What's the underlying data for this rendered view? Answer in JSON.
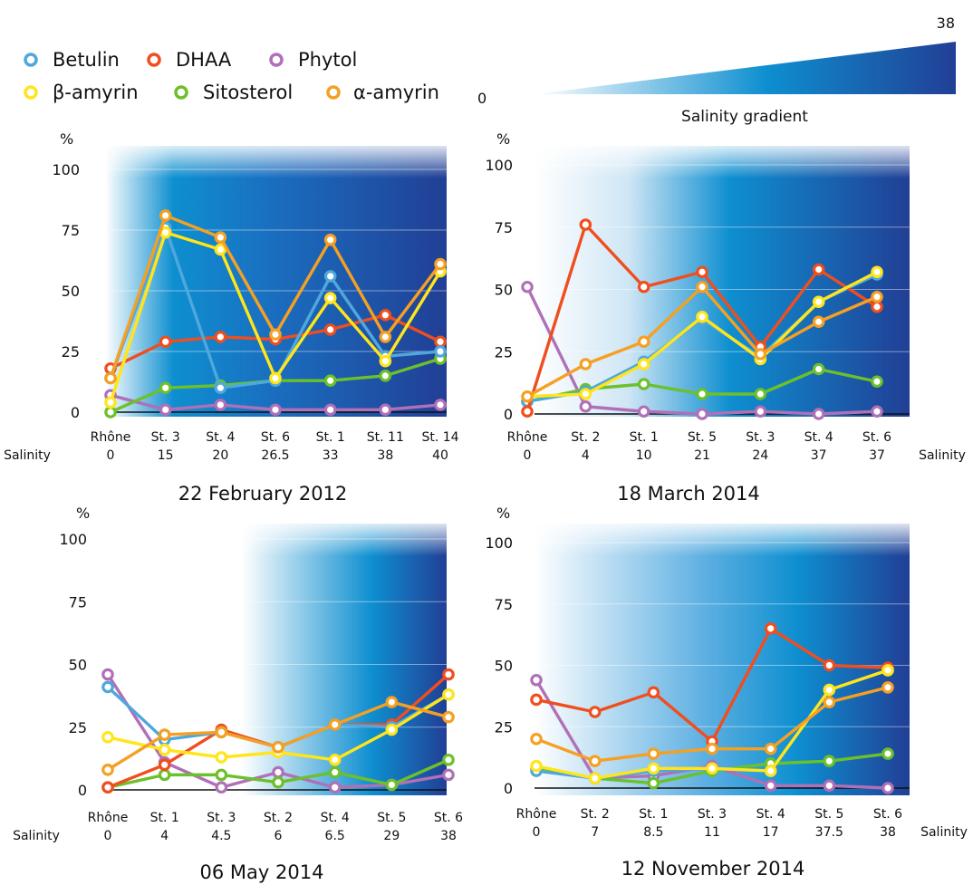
{
  "legend": [
    {
      "name": "Betulin",
      "color": "#4fa8dc"
    },
    {
      "name": "DHAA",
      "color": "#f04e1e"
    },
    {
      "name": "Phytol",
      "color": "#b070b8"
    },
    {
      "name": "β-amyrin",
      "color": "#ffe51a"
    },
    {
      "name": "Sitosterol",
      "color": "#6cc02a"
    },
    {
      "name": "α-amyrin",
      "color": "#f5a023"
    }
  ],
  "gradient_legend": {
    "min_label": "0",
    "max_label": "38",
    "label": "Salinity gradient"
  },
  "background_colors": {
    "light": "#ffffff",
    "mid": "#0e8fd0",
    "dark": "#213f95"
  },
  "chart_data": [
    {
      "type": "line",
      "title": "22 February 2012",
      "ylabel": "%",
      "xlabel": "Salinity",
      "ylim": [
        0,
        100
      ],
      "yticks": [
        "0",
        "25",
        "50",
        "75",
        "100"
      ],
      "categories": [
        "Rhône",
        "St. 3",
        "St. 4",
        "St. 6",
        "St. 1",
        "St. 11",
        "St. 14"
      ],
      "salinity": [
        "0",
        "15",
        "20",
        "26.5",
        "33",
        "38",
        "40"
      ],
      "series": [
        {
          "name": "Phytol",
          "values": [
            7,
            1,
            3,
            1,
            1,
            1,
            3
          ]
        },
        {
          "name": "Sitosterol",
          "values": [
            0,
            10,
            11,
            13,
            13,
            15,
            22
          ]
        },
        {
          "name": "DHAA",
          "values": [
            18,
            29,
            31,
            30,
            34,
            40,
            29
          ]
        },
        {
          "name": "Betulin",
          "values": [
            14,
            76,
            10,
            13,
            56,
            23,
            25
          ]
        },
        {
          "name": "β-amyrin",
          "values": [
            4,
            74,
            67,
            14,
            47,
            21,
            58
          ]
        },
        {
          "name": "α-amyrin",
          "values": [
            14,
            81,
            72,
            32,
            71,
            31,
            61
          ]
        }
      ]
    },
    {
      "type": "line",
      "title": "18 March 2014",
      "ylabel": "%",
      "xlabel": "Salinity",
      "ylim": [
        0,
        100
      ],
      "yticks": [
        "0",
        "25",
        "50",
        "75",
        "100"
      ],
      "categories": [
        "Rhône",
        "St. 2",
        "St. 1",
        "St. 5",
        "St. 3",
        "St. 4",
        "St. 6"
      ],
      "salinity": [
        "0",
        "4",
        "10",
        "21",
        "24",
        "37",
        "37"
      ],
      "series": [
        {
          "name": "Phytol",
          "values": [
            51,
            3,
            1,
            0,
            1,
            0,
            1
          ]
        },
        {
          "name": "Sitosterol",
          "values": [
            5,
            10,
            12,
            8,
            8,
            18,
            13
          ]
        },
        {
          "name": "Betulin",
          "values": [
            5,
            9,
            21,
            38,
            23,
            45,
            56
          ]
        },
        {
          "name": "DHAA",
          "values": [
            1,
            76,
            51,
            57,
            27,
            58,
            43
          ]
        },
        {
          "name": "β-amyrin",
          "values": [
            7,
            8,
            20,
            39,
            22,
            45,
            57
          ]
        },
        {
          "name": "α-amyrin",
          "values": [
            7,
            20,
            29,
            51,
            24,
            37,
            47
          ]
        }
      ]
    },
    {
      "type": "line",
      "title": "06 May 2014",
      "ylabel": "%",
      "xlabel": "Salinity",
      "ylim": [
        0,
        100
      ],
      "yticks": [
        "0",
        "25",
        "50",
        "75",
        "100"
      ],
      "categories": [
        "Rhône",
        "St. 1",
        "St. 3",
        "St. 2",
        "St. 4",
        "St. 5",
        "St. 6"
      ],
      "salinity": [
        "0",
        "4",
        "4.5",
        "6",
        "6.5",
        "29",
        "38"
      ],
      "series": [
        {
          "name": "Phytol",
          "values": [
            46,
            11,
            1,
            7,
            1,
            2,
            6
          ]
        },
        {
          "name": "Sitosterol",
          "values": [
            1,
            6,
            6,
            3,
            7,
            2,
            12
          ]
        },
        {
          "name": "DHAA",
          "values": [
            1,
            10,
            24,
            17,
            26,
            26,
            46
          ]
        },
        {
          "name": "Betulin",
          "values": [
            41,
            20,
            23,
            17,
            26,
            25,
            38
          ]
        },
        {
          "name": "β-amyrin",
          "values": [
            21,
            16,
            13,
            15,
            12,
            24,
            38
          ]
        },
        {
          "name": "α-amyrin",
          "values": [
            8,
            22,
            23,
            17,
            26,
            35,
            29
          ]
        }
      ]
    },
    {
      "type": "line",
      "title": "12 November 2014",
      "ylabel": "%",
      "xlabel": "Salinity",
      "ylim": [
        0,
        100
      ],
      "yticks": [
        "0",
        "25",
        "50",
        "75",
        "100"
      ],
      "categories": [
        "Rhône",
        "St. 2",
        "St. 1",
        "St. 3",
        "St. 4",
        "St. 5",
        "St. 6"
      ],
      "salinity": [
        "0",
        "7",
        "8.5",
        "11",
        "17",
        "37.5",
        "38"
      ],
      "series": [
        {
          "name": "Phytol",
          "values": [
            44,
            4,
            5,
            9,
            1,
            1,
            0
          ]
        },
        {
          "name": "Sitosterol",
          "values": [
            8,
            4,
            2,
            7,
            10,
            11,
            14
          ]
        },
        {
          "name": "Betulin",
          "values": [
            7,
            4,
            7,
            8,
            7,
            40,
            48
          ]
        },
        {
          "name": "DHAA",
          "values": [
            36,
            31,
            39,
            19,
            65,
            50,
            49
          ]
        },
        {
          "name": "β-amyrin",
          "values": [
            9,
            4,
            8,
            8,
            7,
            40,
            48
          ]
        },
        {
          "name": "α-amyrin",
          "values": [
            20,
            11,
            14,
            16,
            16,
            35,
            41
          ]
        }
      ]
    }
  ]
}
